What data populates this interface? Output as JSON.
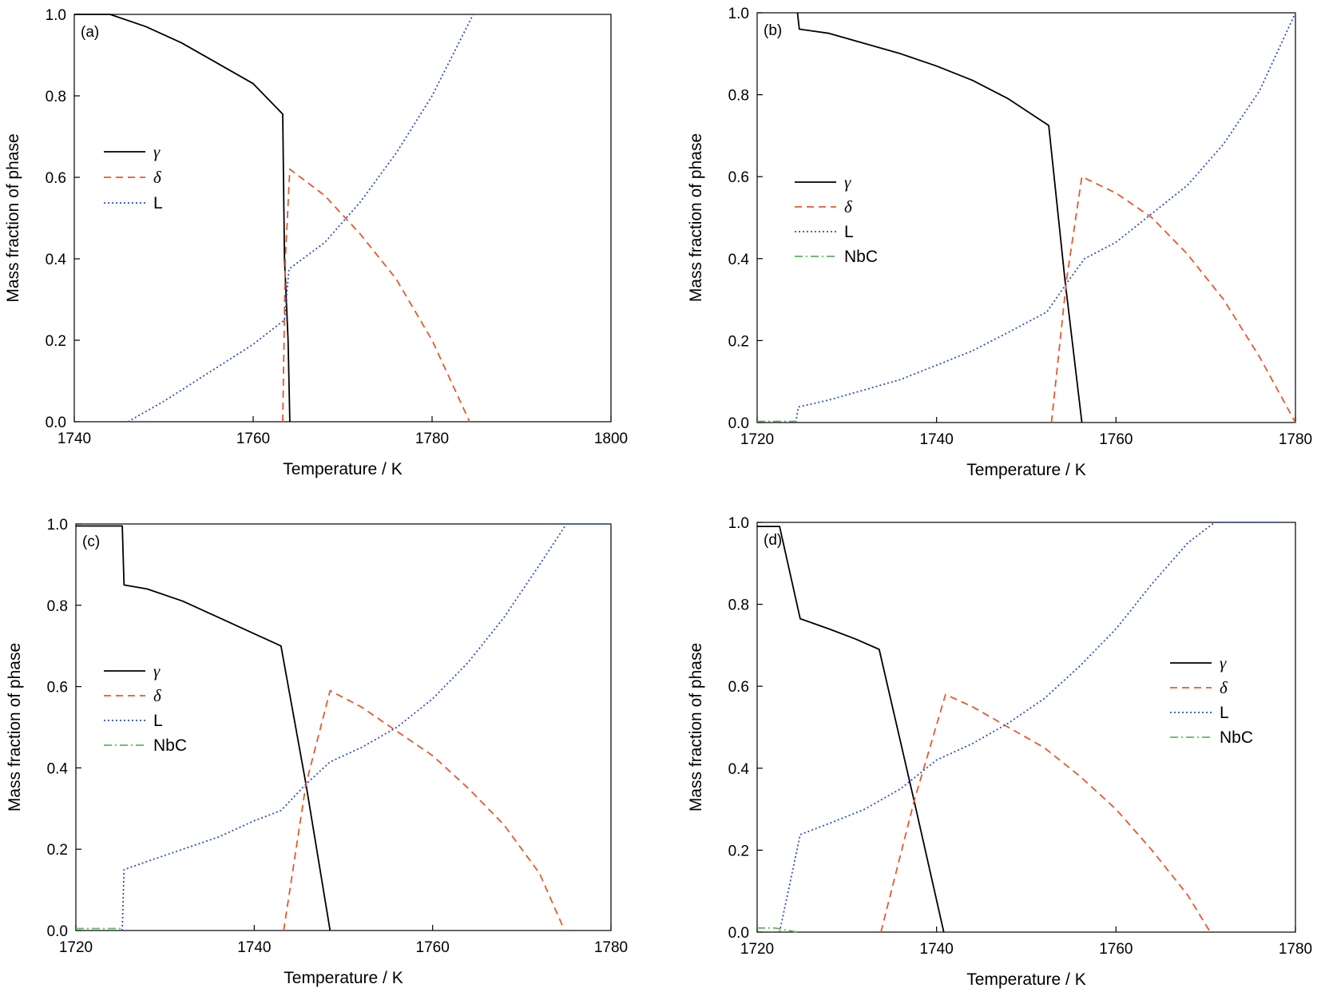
{
  "chart_data": [
    {
      "type": "line",
      "panel_label": "(a)",
      "xlabel": "Temperature / K",
      "ylabel": "Mass fraction of phase",
      "xlim": [
        1740,
        1800
      ],
      "ylim": [
        0,
        1.0
      ],
      "xticks": [
        "1740",
        "1760",
        "1780",
        "1800"
      ],
      "yticks": [
        "0.0",
        "0.2",
        "0.4",
        "0.6",
        "0.8",
        "1.0"
      ],
      "legend_position": "middle-left",
      "series": [
        {
          "name": "γ",
          "color": "#000000",
          "dash": "solid",
          "points": [
            [
              1740,
              1.0
            ],
            [
              1744,
              1.0
            ],
            [
              1748,
              0.97
            ],
            [
              1752,
              0.93
            ],
            [
              1756,
              0.88
            ],
            [
              1760,
              0.83
            ],
            [
              1763.3,
              0.755
            ],
            [
              1763.5,
              0.4
            ],
            [
              1763.9,
              0.2
            ],
            [
              1764.1,
              0.0
            ]
          ]
        },
        {
          "name": "δ",
          "color": "#e8572a",
          "dash": "dashed",
          "points": [
            [
              1763.3,
              0.0
            ],
            [
              1763.6,
              0.4
            ],
            [
              1764.1,
              0.62
            ],
            [
              1768,
              0.555
            ],
            [
              1772,
              0.46
            ],
            [
              1776,
              0.35
            ],
            [
              1780,
              0.2
            ],
            [
              1784.2,
              0.0
            ]
          ]
        },
        {
          "name": "L",
          "color": "#2b4ec6",
          "dash": "dotted",
          "points": [
            [
              1746,
              0.0
            ],
            [
              1750,
              0.05
            ],
            [
              1755,
              0.12
            ],
            [
              1760,
              0.19
            ],
            [
              1763.5,
              0.25
            ],
            [
              1764,
              0.375
            ],
            [
              1768,
              0.44
            ],
            [
              1772,
              0.54
            ],
            [
              1776,
              0.66
            ],
            [
              1780,
              0.8
            ],
            [
              1784.6,
              1.0
            ]
          ]
        }
      ]
    },
    {
      "type": "line",
      "panel_label": "(b)",
      "xlabel": "Temperature / K",
      "ylabel": "Mass fraction of phase",
      "xlim": [
        1720,
        1780
      ],
      "ylim": [
        0,
        1.0
      ],
      "xticks": [
        "1720",
        "1740",
        "1760",
        "1780"
      ],
      "yticks": [
        "0.0",
        "0.2",
        "0.4",
        "0.6",
        "0.8",
        "1.0"
      ],
      "legend_position": "middle-left",
      "series": [
        {
          "name": "γ",
          "color": "#000000",
          "dash": "solid",
          "points": [
            [
              1724.5,
              1.0
            ],
            [
              1724.7,
              0.96
            ],
            [
              1728,
              0.95
            ],
            [
              1732,
              0.925
            ],
            [
              1736,
              0.9
            ],
            [
              1740,
              0.87
            ],
            [
              1744,
              0.835
            ],
            [
              1748,
              0.79
            ],
            [
              1752.5,
              0.725
            ],
            [
              1754.3,
              0.35
            ],
            [
              1756.2,
              0.0
            ]
          ]
        },
        {
          "name": "δ",
          "color": "#e8572a",
          "dash": "dashed",
          "points": [
            [
              1752.8,
              0.0
            ],
            [
              1754.5,
              0.35
            ],
            [
              1756.2,
              0.6
            ],
            [
              1760,
              0.56
            ],
            [
              1764,
              0.5
            ],
            [
              1768,
              0.41
            ],
            [
              1772,
              0.3
            ],
            [
              1776,
              0.16
            ],
            [
              1780,
              0.0
            ]
          ]
        },
        {
          "name": "L",
          "color": "#2b4ec6",
          "dash": "dotted",
          "points": [
            [
              1724.3,
              0.0
            ],
            [
              1724.6,
              0.038
            ],
            [
              1728,
              0.055
            ],
            [
              1732,
              0.08
            ],
            [
              1736,
              0.105
            ],
            [
              1740,
              0.14
            ],
            [
              1744,
              0.175
            ],
            [
              1748,
              0.22
            ],
            [
              1752.3,
              0.27
            ],
            [
              1754.5,
              0.34
            ],
            [
              1756.5,
              0.4
            ],
            [
              1760,
              0.44
            ],
            [
              1764,
              0.51
            ],
            [
              1768,
              0.58
            ],
            [
              1772,
              0.68
            ],
            [
              1776,
              0.81
            ],
            [
              1780,
              1.0
            ]
          ]
        },
        {
          "name": "NbC",
          "color": "#5cb85c",
          "dash": "dashdot",
          "points": [
            [
              1720,
              0.003
            ],
            [
              1724.3,
              0.003
            ]
          ]
        }
      ]
    },
    {
      "type": "line",
      "panel_label": "(c)",
      "xlabel": "Temperature / K",
      "ylabel": "Mass fraction of phase",
      "xlim": [
        1720,
        1780
      ],
      "ylim": [
        0,
        1.0
      ],
      "xticks": [
        "1720",
        "1740",
        "1760",
        "1780"
      ],
      "yticks": [
        "0.0",
        "0.2",
        "0.4",
        "0.6",
        "0.8",
        "1.0"
      ],
      "legend_position": "middle-left",
      "series": [
        {
          "name": "γ",
          "color": "#000000",
          "dash": "solid",
          "points": [
            [
              1720,
              0.995
            ],
            [
              1725.2,
              0.995
            ],
            [
              1725.4,
              0.85
            ],
            [
              1728,
              0.84
            ],
            [
              1732,
              0.81
            ],
            [
              1736,
              0.77
            ],
            [
              1740,
              0.73
            ],
            [
              1743,
              0.7
            ],
            [
              1745.8,
              0.36
            ],
            [
              1748.5,
              0.0
            ]
          ]
        },
        {
          "name": "δ",
          "color": "#e8572a",
          "dash": "dashed",
          "points": [
            [
              1743.3,
              0.0
            ],
            [
              1745.8,
              0.36
            ],
            [
              1748.5,
              0.59
            ],
            [
              1752,
              0.55
            ],
            [
              1756,
              0.49
            ],
            [
              1760,
              0.43
            ],
            [
              1764,
              0.35
            ],
            [
              1768,
              0.26
            ],
            [
              1772,
              0.14
            ],
            [
              1774.8,
              0.0
            ]
          ]
        },
        {
          "name": "L",
          "color": "#2b4ec6",
          "dash": "dotted",
          "points": [
            [
              1725.2,
              0.0
            ],
            [
              1725.4,
              0.15
            ],
            [
              1728,
              0.17
            ],
            [
              1732,
              0.2
            ],
            [
              1736,
              0.23
            ],
            [
              1740,
              0.27
            ],
            [
              1743,
              0.295
            ],
            [
              1745.8,
              0.36
            ],
            [
              1748.5,
              0.415
            ],
            [
              1752,
              0.45
            ],
            [
              1756,
              0.5
            ],
            [
              1760,
              0.57
            ],
            [
              1764,
              0.66
            ],
            [
              1768,
              0.77
            ],
            [
              1772,
              0.9
            ],
            [
              1775,
              1.0
            ],
            [
              1780,
              1.0
            ]
          ]
        },
        {
          "name": "NbC",
          "color": "#5cb85c",
          "dash": "dashdot",
          "points": [
            [
              1720,
              0.005
            ],
            [
              1725.2,
              0.005
            ]
          ]
        }
      ]
    },
    {
      "type": "line",
      "panel_label": "(d)",
      "xlabel": "Temperature / K",
      "ylabel": "Mass fraction of phase",
      "xlim": [
        1720,
        1780
      ],
      "ylim": [
        0,
        1.0
      ],
      "xticks": [
        "1720",
        "1740",
        "1760",
        "1780"
      ],
      "yticks": [
        "0.0",
        "0.2",
        "0.4",
        "0.6",
        "0.8",
        "1.0"
      ],
      "legend_position": "right",
      "series": [
        {
          "name": "γ",
          "color": "#000000",
          "dash": "solid",
          "points": [
            [
              1720,
              0.99
            ],
            [
              1722.5,
              0.99
            ],
            [
              1724.8,
              0.765
            ],
            [
              1728,
              0.74
            ],
            [
              1731,
              0.715
            ],
            [
              1733.6,
              0.69
            ],
            [
              1737.5,
              0.32
            ],
            [
              1740.8,
              0.0
            ]
          ]
        },
        {
          "name": "δ",
          "color": "#e8572a",
          "dash": "dashed",
          "points": [
            [
              1733.8,
              0.0
            ],
            [
              1737.5,
              0.32
            ],
            [
              1741,
              0.58
            ],
            [
              1744,
              0.55
            ],
            [
              1748,
              0.5
            ],
            [
              1752,
              0.45
            ],
            [
              1756,
              0.38
            ],
            [
              1760,
              0.3
            ],
            [
              1764,
              0.2
            ],
            [
              1768,
              0.09
            ],
            [
              1770.5,
              0.0
            ]
          ]
        },
        {
          "name": "L",
          "color": "#2b4ec6",
          "dash": "dotted",
          "points": [
            [
              1722.5,
              0.0
            ],
            [
              1724.8,
              0.238
            ],
            [
              1728,
              0.265
            ],
            [
              1732,
              0.3
            ],
            [
              1736,
              0.35
            ],
            [
              1740,
              0.42
            ],
            [
              1744,
              0.46
            ],
            [
              1748,
              0.51
            ],
            [
              1752,
              0.57
            ],
            [
              1756,
              0.65
            ],
            [
              1760,
              0.74
            ],
            [
              1764,
              0.85
            ],
            [
              1768,
              0.95
            ],
            [
              1771,
              1.0
            ],
            [
              1778,
              1.0
            ]
          ]
        },
        {
          "name": "NbC",
          "color": "#5cb85c",
          "dash": "dashdot",
          "points": [
            [
              1720,
              0.01
            ],
            [
              1722,
              0.01
            ],
            [
              1724.5,
              0.0
            ]
          ]
        }
      ]
    }
  ]
}
